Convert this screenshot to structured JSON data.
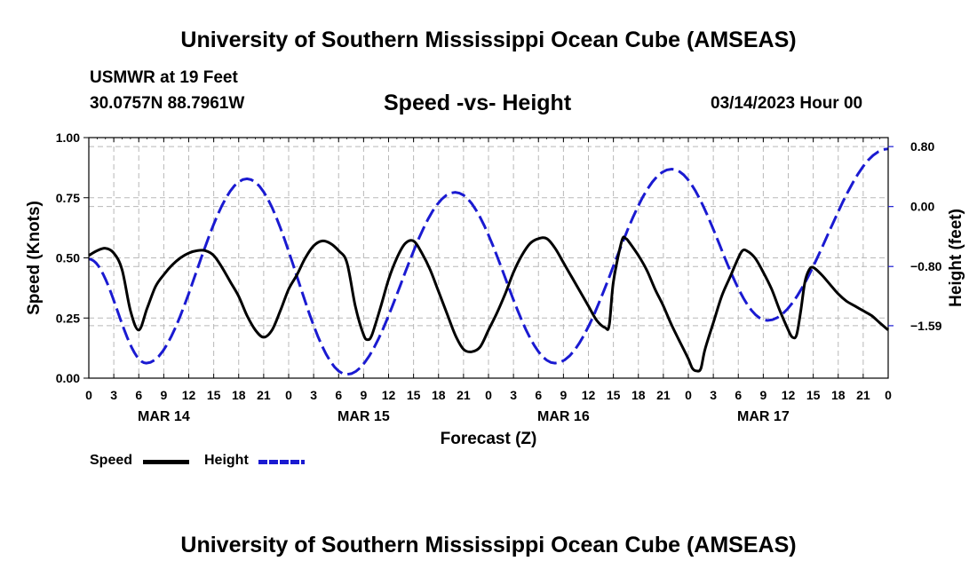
{
  "header": {
    "title": "University of Southern Mississippi Ocean Cube (AMSEAS)",
    "station": "USMWR at 19 Feet",
    "coords": "30.0757N  88.7961W",
    "subtitle": "Speed -vs- Height",
    "datetime": "03/14/2023 Hour 00"
  },
  "footer": {
    "title": "University of Southern Mississippi Ocean Cube (AMSEAS)"
  },
  "legend": {
    "speed_label": "Speed",
    "height_label": "Height"
  },
  "colors": {
    "speed": "#000000",
    "height": "#1a1ad1",
    "grid": "#b8b8b8"
  },
  "chart_data": {
    "type": "line",
    "title": "Speed -vs- Height",
    "xlabel": "Forecast (Z)",
    "ylabel": "Speed (Knots)",
    "y2label": "Height (feet)",
    "xlim": [
      0,
      96
    ],
    "ylim": [
      0,
      1
    ],
    "y2lim": [
      -2.29,
      0.92
    ],
    "y_ticks": [
      0,
      0.25,
      0.5,
      0.75,
      1.0
    ],
    "y_tick_labels": [
      "0.00",
      "0.25",
      "0.50",
      "0.75",
      "1.00"
    ],
    "y2_ticks": [
      0.8,
      0.0,
      -0.8,
      -1.59
    ],
    "y2_tick_labels": [
      "0.80",
      "0.00",
      "−0.80",
      "−1.59"
    ],
    "x_ticks": [
      0,
      3,
      6,
      9,
      12,
      15,
      18,
      21,
      24,
      27,
      30,
      33,
      36,
      39,
      42,
      45,
      48,
      51,
      54,
      57,
      60,
      63,
      66,
      69,
      72,
      75,
      78,
      81,
      84,
      87,
      90,
      93,
      96
    ],
    "x_tick_labels": [
      "0",
      "3",
      "6",
      "9",
      "12",
      "15",
      "18",
      "21",
      "0",
      "3",
      "6",
      "9",
      "12",
      "15",
      "18",
      "21",
      "0",
      "3",
      "6",
      "9",
      "12",
      "15",
      "18",
      "21",
      "0",
      "3",
      "6",
      "9",
      "12",
      "15",
      "18",
      "21",
      "0"
    ],
    "date_labels": [
      {
        "label": "MAR 14",
        "x": 9
      },
      {
        "label": "MAR 15",
        "x": 33
      },
      {
        "label": "MAR 16",
        "x": 57
      },
      {
        "label": "MAR 17",
        "x": 81
      }
    ],
    "series": [
      {
        "name": "Speed",
        "axis": "left",
        "points": [
          [
            0,
            0.51
          ],
          [
            1,
            0.53
          ],
          [
            2,
            0.54
          ],
          [
            3,
            0.52
          ],
          [
            4,
            0.45
          ],
          [
            5,
            0.28
          ],
          [
            6,
            0.2
          ],
          [
            7,
            0.29
          ],
          [
            8,
            0.38
          ],
          [
            9,
            0.43
          ],
          [
            10,
            0.47
          ],
          [
            11,
            0.5
          ],
          [
            12,
            0.52
          ],
          [
            13,
            0.53
          ],
          [
            14,
            0.53
          ],
          [
            15,
            0.51
          ],
          [
            16,
            0.46
          ],
          [
            17,
            0.4
          ],
          [
            18,
            0.34
          ],
          [
            19,
            0.26
          ],
          [
            20,
            0.2
          ],
          [
            21,
            0.17
          ],
          [
            22,
            0.2
          ],
          [
            23,
            0.28
          ],
          [
            24,
            0.37
          ],
          [
            25,
            0.43
          ],
          [
            26,
            0.5
          ],
          [
            27,
            0.55
          ],
          [
            28,
            0.57
          ],
          [
            29,
            0.56
          ],
          [
            30,
            0.53
          ],
          [
            31,
            0.48
          ],
          [
            32,
            0.3
          ],
          [
            33,
            0.18
          ],
          [
            33.5,
            0.16
          ],
          [
            34,
            0.18
          ],
          [
            35,
            0.29
          ],
          [
            36,
            0.41
          ],
          [
            37,
            0.5
          ],
          [
            38,
            0.56
          ],
          [
            39,
            0.57
          ],
          [
            40,
            0.52
          ],
          [
            41,
            0.45
          ],
          [
            42,
            0.36
          ],
          [
            43,
            0.27
          ],
          [
            44,
            0.18
          ],
          [
            45,
            0.12
          ],
          [
            46,
            0.11
          ],
          [
            47,
            0.13
          ],
          [
            48,
            0.2
          ],
          [
            49,
            0.27
          ],
          [
            50,
            0.35
          ],
          [
            51,
            0.44
          ],
          [
            52,
            0.51
          ],
          [
            53,
            0.56
          ],
          [
            54,
            0.58
          ],
          [
            55,
            0.58
          ],
          [
            56,
            0.54
          ],
          [
            57,
            0.48
          ],
          [
            58,
            0.42
          ],
          [
            59,
            0.36
          ],
          [
            60,
            0.3
          ],
          [
            61,
            0.24
          ],
          [
            62,
            0.21
          ],
          [
            62.5,
            0.22
          ],
          [
            63,
            0.4
          ],
          [
            64,
            0.57
          ],
          [
            64.5,
            0.58
          ],
          [
            65,
            0.56
          ],
          [
            66,
            0.51
          ],
          [
            67,
            0.45
          ],
          [
            68,
            0.37
          ],
          [
            69,
            0.3
          ],
          [
            70,
            0.22
          ],
          [
            71,
            0.15
          ],
          [
            72,
            0.08
          ],
          [
            72.5,
            0.04
          ],
          [
            73,
            0.03
          ],
          [
            73.5,
            0.04
          ],
          [
            74,
            0.12
          ],
          [
            75,
            0.23
          ],
          [
            76,
            0.34
          ],
          [
            77,
            0.42
          ],
          [
            78,
            0.5
          ],
          [
            78.5,
            0.53
          ],
          [
            79,
            0.53
          ],
          [
            80,
            0.5
          ],
          [
            81,
            0.44
          ],
          [
            82,
            0.37
          ],
          [
            83,
            0.28
          ],
          [
            84,
            0.2
          ],
          [
            84.5,
            0.17
          ],
          [
            85,
            0.18
          ],
          [
            85.5,
            0.28
          ],
          [
            86,
            0.4
          ],
          [
            86.5,
            0.45
          ],
          [
            87,
            0.46
          ],
          [
            88,
            0.43
          ],
          [
            89,
            0.39
          ],
          [
            90,
            0.35
          ],
          [
            91,
            0.32
          ],
          [
            92,
            0.3
          ],
          [
            93,
            0.28
          ],
          [
            94,
            0.26
          ],
          [
            95,
            0.23
          ],
          [
            96,
            0.2
          ]
        ]
      },
      {
        "name": "Height",
        "axis": "right",
        "extrema": [
          [
            0,
            -0.7
          ],
          [
            6.9,
            -2.09
          ],
          [
            19,
            0.37
          ],
          [
            31,
            -2.24
          ],
          [
            44,
            0.19
          ],
          [
            56,
            -2.09
          ],
          [
            70,
            0.5
          ],
          [
            81.5,
            -1.52
          ],
          [
            96,
            0.77
          ]
        ]
      }
    ]
  }
}
